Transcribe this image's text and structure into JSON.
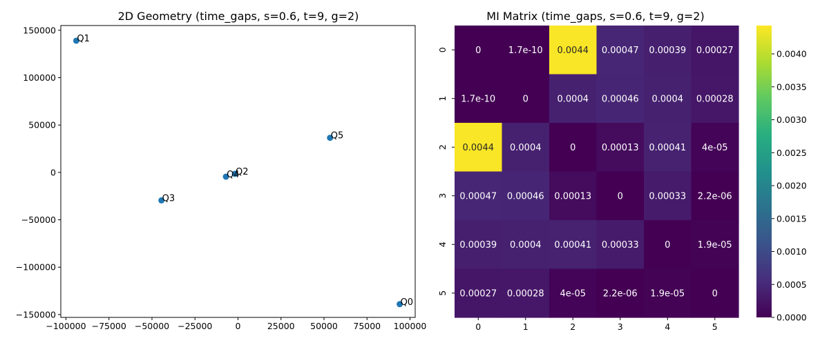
{
  "chart_data": [
    {
      "type": "scatter",
      "title": "2D Geometry (time_gaps, s=0.6, t=9, g=2)",
      "xlim": [
        -103000,
        103000
      ],
      "ylim": [
        -153000,
        155000
      ],
      "xticks": [
        -100000,
        -75000,
        -50000,
        -25000,
        0,
        25000,
        50000,
        75000,
        100000
      ],
      "xtick_labels": [
        "−100000",
        "−75000",
        "−50000",
        "−25000",
        "0",
        "25000",
        "50000",
        "75000",
        "100000"
      ],
      "yticks": [
        -150000,
        -100000,
        -50000,
        0,
        50000,
        100000,
        150000
      ],
      "ytick_labels": [
        "−150000",
        "−100000",
        "−50000",
        "0",
        "50000",
        "100000",
        "150000"
      ],
      "point_color": "#1f77b4",
      "points": [
        {
          "label": "Q0",
          "x": 94000,
          "y": -139000
        },
        {
          "label": "Q1",
          "x": -94000,
          "y": 139000
        },
        {
          "label": "Q2",
          "x": -1800,
          "y": -1500
        },
        {
          "label": "Q3",
          "x": -44500,
          "y": -29500
        },
        {
          "label": "Q4",
          "x": -7000,
          "y": -4500
        },
        {
          "label": "Q5",
          "x": 53500,
          "y": 36500
        }
      ]
    },
    {
      "type": "heatmap",
      "title": "MI Matrix (time_gaps, s=0.6, t=9, g=2)",
      "colormap": "viridis",
      "vmin": 0,
      "vmax": 0.00443,
      "row_labels": [
        "0",
        "1",
        "2",
        "3",
        "4",
        "5"
      ],
      "col_labels": [
        "0",
        "1",
        "2",
        "3",
        "4",
        "5"
      ],
      "values": [
        [
          0,
          1.7e-10,
          0.0044,
          0.00047,
          0.00039,
          0.00027
        ],
        [
          1.7e-10,
          0,
          0.0004,
          0.00046,
          0.0004,
          0.00028
        ],
        [
          0.0044,
          0.0004,
          0,
          0.00013,
          0.00041,
          4e-05
        ],
        [
          0.00047,
          0.00046,
          0.00013,
          0,
          0.00033,
          2.2e-06
        ],
        [
          0.00039,
          0.0004,
          0.00041,
          0.00033,
          0,
          1.9e-05
        ],
        [
          0.00027,
          0.00028,
          4e-05,
          2.2e-06,
          1.9e-05,
          0
        ]
      ],
      "cell_labels": [
        [
          "0",
          "1.7e-10",
          "0.0044",
          "0.00047",
          "0.00039",
          "0.00027"
        ],
        [
          "1.7e-10",
          "0",
          "0.0004",
          "0.00046",
          "0.0004",
          "0.00028"
        ],
        [
          "0.0044",
          "0.0004",
          "0",
          "0.00013",
          "0.00041",
          "4e-05"
        ],
        [
          "0.00047",
          "0.00046",
          "0.00013",
          "0",
          "0.00033",
          "2.2e-06"
        ],
        [
          "0.00039",
          "0.0004",
          "0.00041",
          "0.00033",
          "0",
          "1.9e-05"
        ],
        [
          "0.00027",
          "0.00028",
          "4e-05",
          "2.2e-06",
          "1.9e-05",
          "0"
        ]
      ],
      "colorbar_ticks": [
        0,
        0.0005,
        0.001,
        0.0015,
        0.002,
        0.0025,
        0.003,
        0.0035,
        0.004
      ],
      "colorbar_tick_labels": [
        "0.0000",
        "0.0005",
        "0.0010",
        "0.0015",
        "0.0020",
        "0.0025",
        "0.0030",
        "0.0035",
        "0.0040"
      ]
    }
  ]
}
